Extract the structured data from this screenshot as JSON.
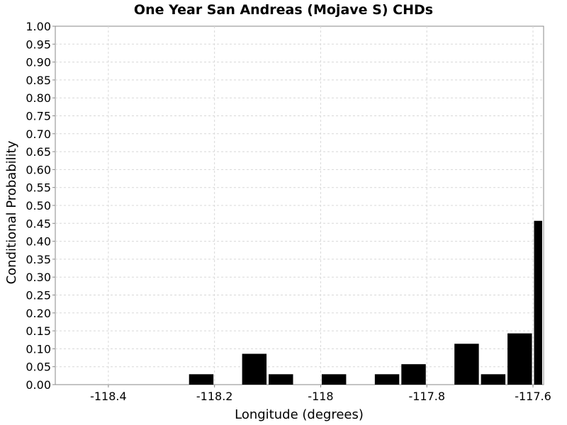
{
  "chart_data": {
    "type": "bar",
    "title": "One Year San Andreas (Mojave S) CHDs",
    "xlabel": "Longitude (degrees)",
    "ylabel": "Conditional Probability",
    "xlim": [
      -118.5,
      -117.58
    ],
    "ylim": [
      0,
      1
    ],
    "grid": true,
    "x_ticks": [
      -118.4,
      -118.2,
      -118,
      -117.8,
      -117.6
    ],
    "x_tick_labels": [
      "-118.4",
      "-118.2",
      "-118",
      "-117.8",
      "-117.6"
    ],
    "y_ticks": [
      0,
      0.05,
      0.1,
      0.15,
      0.2,
      0.25,
      0.3,
      0.35,
      0.4,
      0.45,
      0.5,
      0.55,
      0.6,
      0.65,
      0.7,
      0.75,
      0.8,
      0.85,
      0.9,
      0.95,
      1.0
    ],
    "y_tick_labels": [
      "0.00",
      "0.05",
      "0.10",
      "0.15",
      "0.20",
      "0.25",
      "0.30",
      "0.35",
      "0.40",
      "0.45",
      "0.50",
      "0.55",
      "0.60",
      "0.65",
      "0.70",
      "0.75",
      "0.80",
      "0.85",
      "0.90",
      "0.95",
      "1.00"
    ],
    "bin_width": 0.05,
    "bars": [
      {
        "x": -118.225,
        "y": 0.029
      },
      {
        "x": -118.125,
        "y": 0.086
      },
      {
        "x": -118.075,
        "y": 0.029
      },
      {
        "x": -117.975,
        "y": 0.029
      },
      {
        "x": -117.875,
        "y": 0.029
      },
      {
        "x": -117.825,
        "y": 0.057
      },
      {
        "x": -117.725,
        "y": 0.114
      },
      {
        "x": -117.675,
        "y": 0.029
      },
      {
        "x": -117.625,
        "y": 0.143
      },
      {
        "x": -117.575,
        "y": 0.457
      }
    ],
    "colors": {
      "bar": "#000000",
      "grid": "#d8d8d8",
      "border": "#888888"
    }
  }
}
